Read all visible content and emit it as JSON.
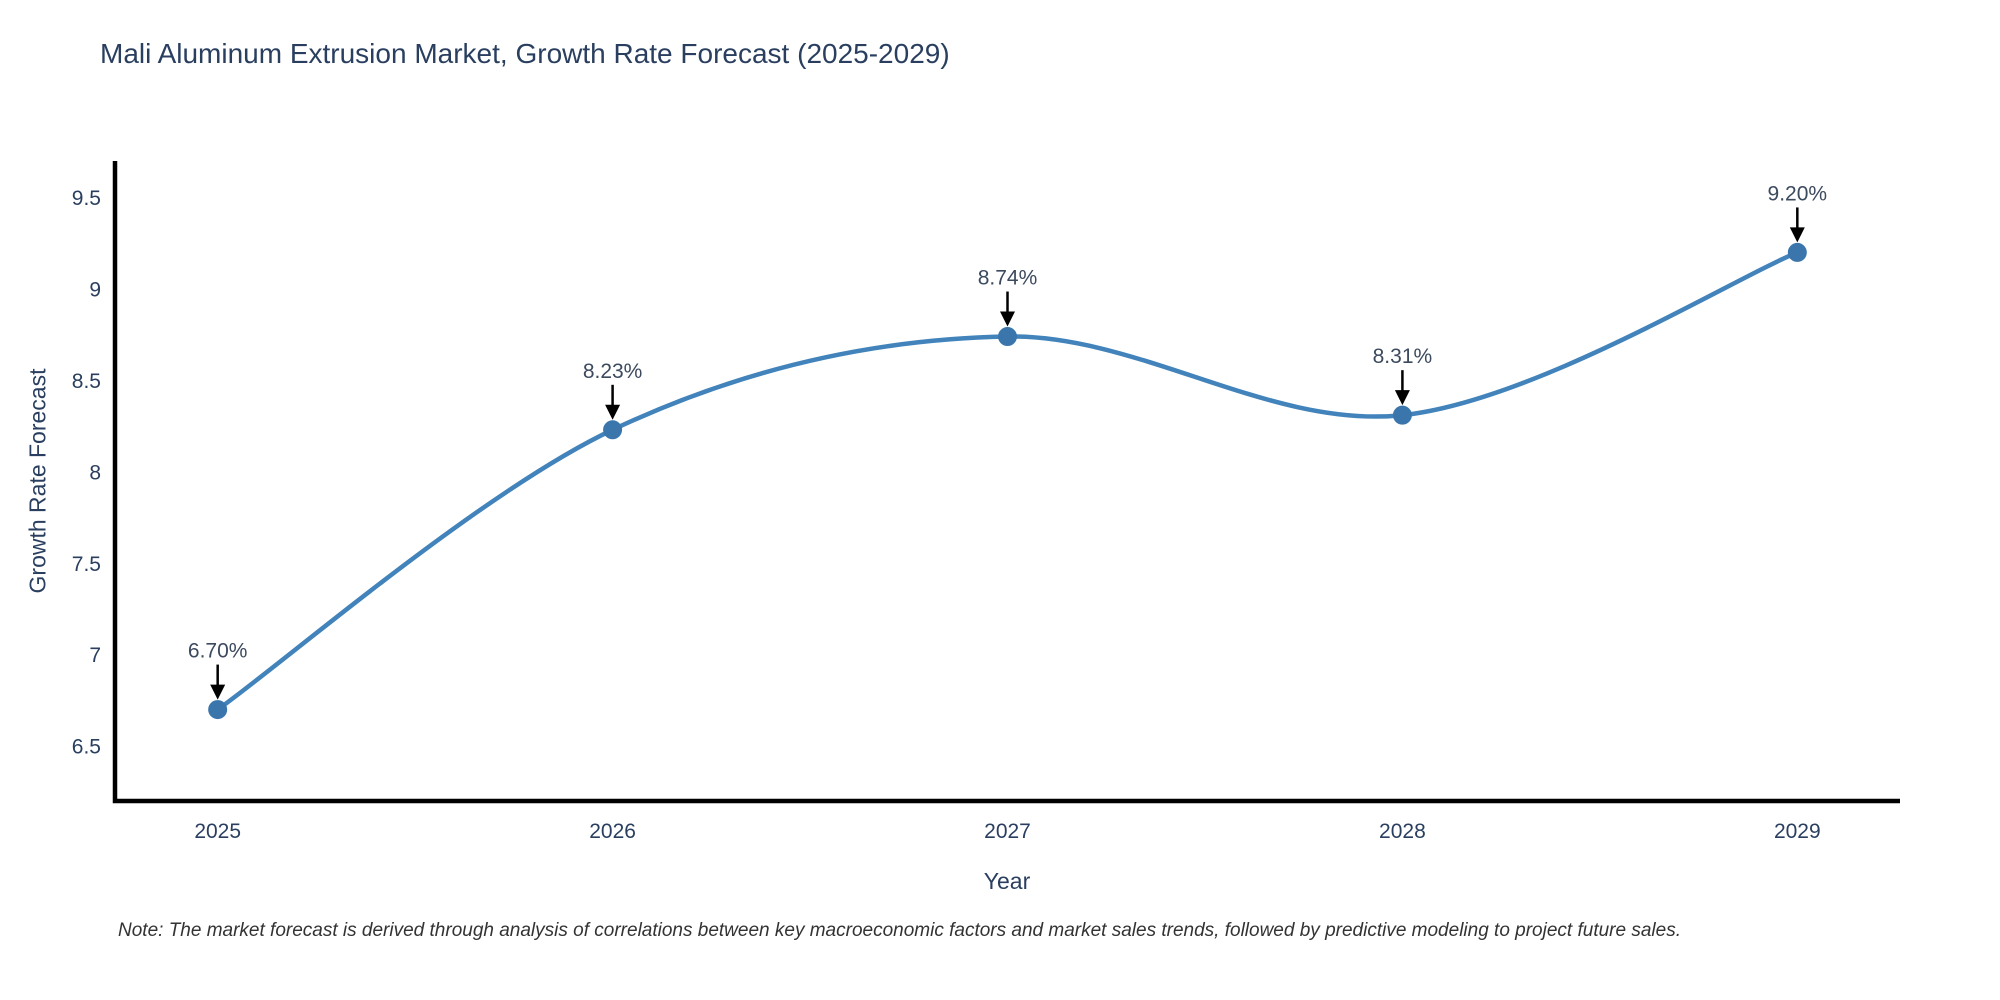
{
  "chart_data": {
    "type": "line",
    "title": "Mali Aluminum Extrusion Market, Growth Rate Forecast (2025-2029)",
    "xlabel": "Year",
    "ylabel": "Growth Rate Forecast",
    "x": [
      2025,
      2026,
      2027,
      2028,
      2029
    ],
    "series": [
      {
        "name": "Growth Rate Forecast",
        "values": [
          6.7,
          8.23,
          8.74,
          8.31,
          9.2
        ]
      }
    ],
    "point_labels": [
      "6.70%",
      "8.23%",
      "8.74%",
      "8.31%",
      "9.20%"
    ],
    "xticks": [
      "2025",
      "2026",
      "2027",
      "2028",
      "2029"
    ],
    "yticks": [
      "6.5",
      "7",
      "7.5",
      "8",
      "8.5",
      "9",
      "9.5"
    ],
    "ytick_values": [
      6.5,
      7,
      7.5,
      8,
      8.5,
      9,
      9.5
    ],
    "xlim": [
      2024.74,
      2029.26
    ],
    "ylim": [
      6.2,
      9.7
    ],
    "grid": false,
    "legend": "none",
    "line_shape": "spline",
    "marker": "circle",
    "annotation_style": "black-arrow-down",
    "colors": {
      "line": "#4183ba",
      "marker": "#3a76ac",
      "axis": "#000000",
      "text": "#2a3f5f",
      "annotation_text": "#3c4a5e",
      "arrow": "#000000",
      "note_text": "#333333"
    },
    "note": "Note: The market forecast is derived through analysis of correlations between key macroeconomic factors and market sales trends, followed by predictive modeling to project future sales."
  }
}
